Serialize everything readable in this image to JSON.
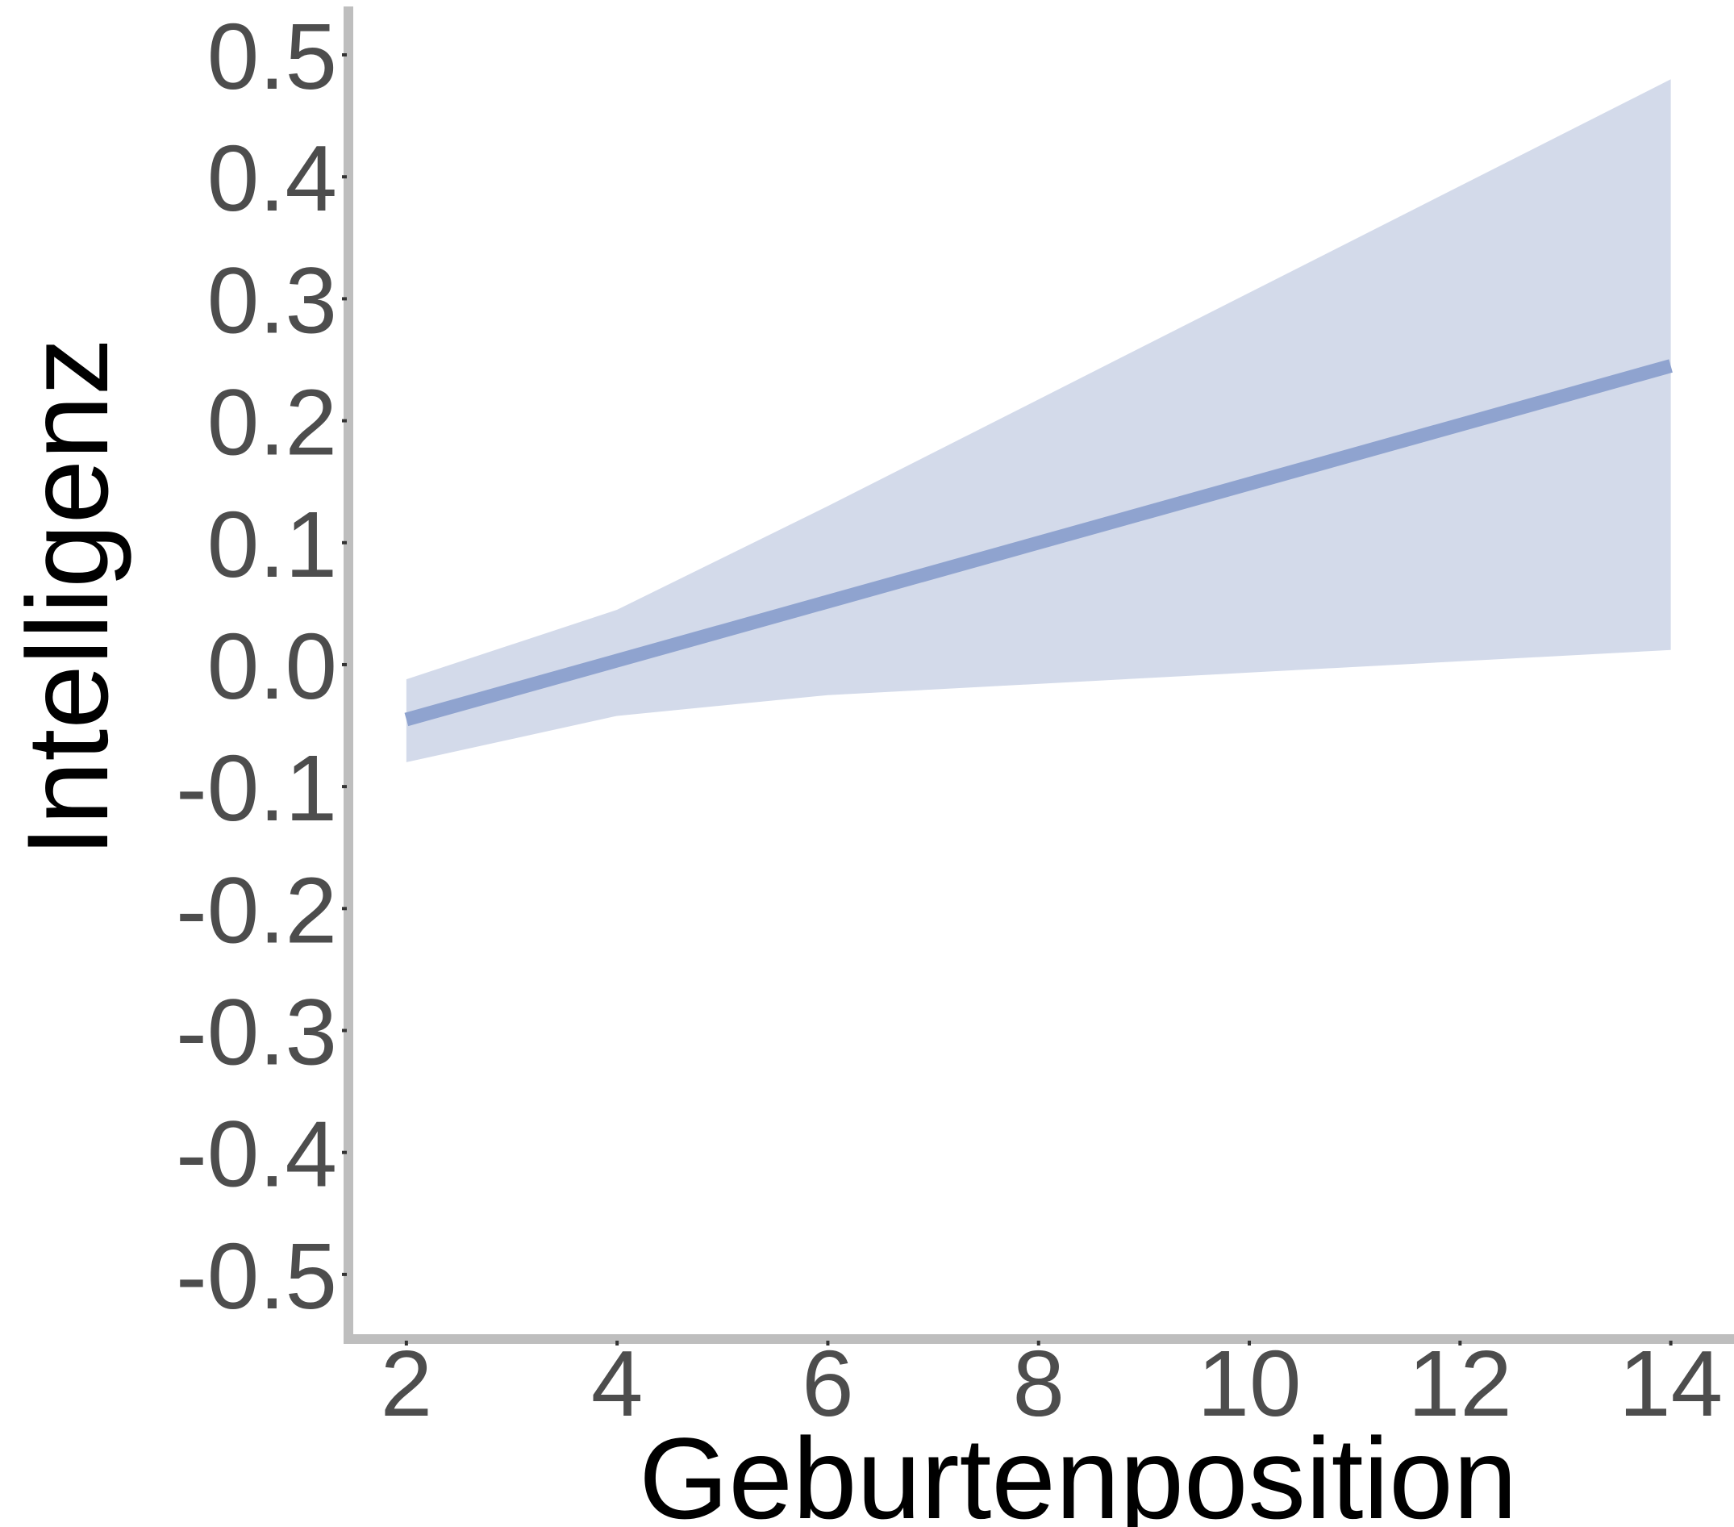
{
  "chart_data": {
    "type": "line",
    "title": "",
    "xlabel": "Geburtenposition",
    "ylabel": "Intelligenz",
    "x_ticks": [
      2,
      4,
      6,
      8,
      10,
      12,
      14
    ],
    "y_ticks": [
      0.5,
      0.4,
      0.3,
      0.2,
      0.1,
      0.0,
      -0.1,
      -0.2,
      -0.3,
      -0.4,
      -0.5
    ],
    "y_tick_labels": [
      "0.5",
      "0.4",
      "0.3",
      "0.2",
      "0.1",
      "0.0",
      "-0.1",
      "-0.2",
      "-0.3",
      "-0.4",
      "-0.5"
    ],
    "xlim": [
      1.45,
      14.6
    ],
    "ylim": [
      -0.553,
      0.545
    ],
    "grid": false,
    "series": [
      {
        "x": [
          2,
          14
        ],
        "y": [
          -0.045,
          0.245
        ],
        "band": {
          "x": [
            2,
            4,
            6,
            14
          ],
          "lower": [
            -0.08,
            -0.042,
            -0.025,
            0.012
          ],
          "upper": [
            -0.012,
            0.045,
            0.13,
            0.48
          ]
        }
      }
    ],
    "colors": {
      "line": "#8fa3cf",
      "band": "#d3daea",
      "axis": "#bebebe",
      "tick_text": "#4d4d4d",
      "title_text": "#000000"
    }
  }
}
